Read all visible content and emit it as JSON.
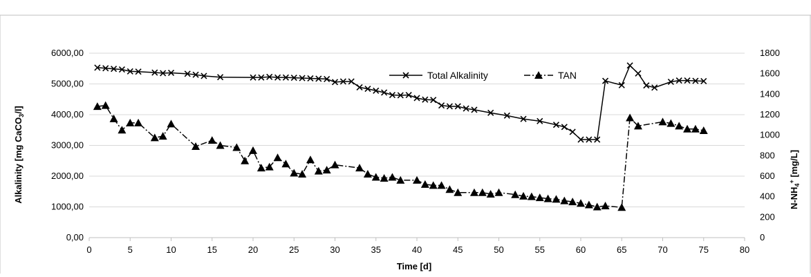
{
  "chart_data": {
    "type": "line",
    "title": "",
    "xlabel": "Time [d]",
    "ylabel_left": {
      "main": "Alkalinity [mg CaCO",
      "sub": "3",
      "tail": "/l]"
    },
    "ylabel_right": {
      "main": "N-NH",
      "sub": "4",
      "sup": "+",
      "tail": " [mg/L]"
    },
    "xlim": [
      0,
      80
    ],
    "ylim_left": [
      0,
      6000
    ],
    "ylim_right": [
      0,
      1800
    ],
    "x_ticks": [
      "0",
      "5",
      "10",
      "15",
      "20",
      "25",
      "30",
      "35",
      "40",
      "45",
      "50",
      "55",
      "60",
      "65",
      "70",
      "75",
      "80"
    ],
    "y_left_ticks": [
      "0,00",
      "1000,00",
      "2000,00",
      "3000,00",
      "4000,00",
      "5000,00",
      "6000,00"
    ],
    "y_right_ticks": [
      "0",
      "200",
      "400",
      "600",
      "800",
      "1000",
      "1200",
      "1400",
      "1600",
      "1800"
    ],
    "grid": "horizontal",
    "legend_position": "top-right",
    "series": [
      {
        "name": "Total Alkalinity",
        "axis": "left",
        "marker": "x",
        "line_style": "solid",
        "color": "#000000",
        "x": [
          1,
          2,
          3,
          4,
          5,
          6,
          8,
          9,
          10,
          12,
          13,
          14,
          16,
          20,
          21,
          22,
          23,
          24,
          25,
          26,
          27,
          28,
          29,
          30,
          31,
          32,
          33,
          34,
          35,
          36,
          37,
          38,
          39,
          40,
          41,
          42,
          43,
          44,
          45,
          46,
          47,
          49,
          51,
          53,
          55,
          57,
          58,
          59,
          60,
          61,
          62,
          63,
          65,
          66,
          67,
          68,
          69,
          71,
          72,
          73,
          74,
          75
        ],
        "values": [
          5530,
          5510,
          5490,
          5470,
          5410,
          5400,
          5370,
          5350,
          5360,
          5330,
          5300,
          5260,
          5220,
          5210,
          5210,
          5230,
          5210,
          5210,
          5200,
          5190,
          5180,
          5170,
          5160,
          5060,
          5080,
          5080,
          4890,
          4840,
          4780,
          4720,
          4640,
          4630,
          4640,
          4540,
          4490,
          4480,
          4300,
          4270,
          4270,
          4200,
          4160,
          4060,
          3970,
          3860,
          3790,
          3670,
          3600,
          3440,
          3190,
          3190,
          3190,
          5100,
          4960,
          5600,
          5340,
          4950,
          4880,
          5070,
          5110,
          5110,
          5100,
          5090
        ]
      },
      {
        "name": "TAN",
        "axis": "right",
        "marker": "triangle",
        "line_style": "dash-dot",
        "color": "#000000",
        "x": [
          1,
          2,
          3,
          4,
          5,
          6,
          8,
          9,
          10,
          13,
          15,
          16,
          18,
          19,
          20,
          21,
          22,
          23,
          24,
          25,
          26,
          27,
          28,
          29,
          30,
          33,
          34,
          35,
          36,
          37,
          38,
          40,
          41,
          42,
          43,
          44,
          45,
          47,
          48,
          49,
          50,
          52,
          53,
          54,
          55,
          56,
          57,
          58,
          59,
          60,
          61,
          62,
          63,
          65,
          66,
          67,
          70,
          71,
          72,
          73,
          74,
          75
        ],
        "values": [
          1280,
          1290,
          1160,
          1050,
          1120,
          1120,
          975,
          990,
          1110,
          890,
          950,
          900,
          880,
          750,
          850,
          680,
          690,
          780,
          720,
          630,
          620,
          760,
          650,
          660,
          710,
          680,
          620,
          590,
          580,
          590,
          560,
          560,
          520,
          510,
          510,
          470,
          440,
          440,
          440,
          425,
          440,
          420,
          405,
          400,
          390,
          380,
          375,
          360,
          350,
          335,
          320,
          300,
          310,
          295,
          1170,
          1090,
          1130,
          1115,
          1090,
          1060,
          1060,
          1045
        ]
      }
    ]
  }
}
